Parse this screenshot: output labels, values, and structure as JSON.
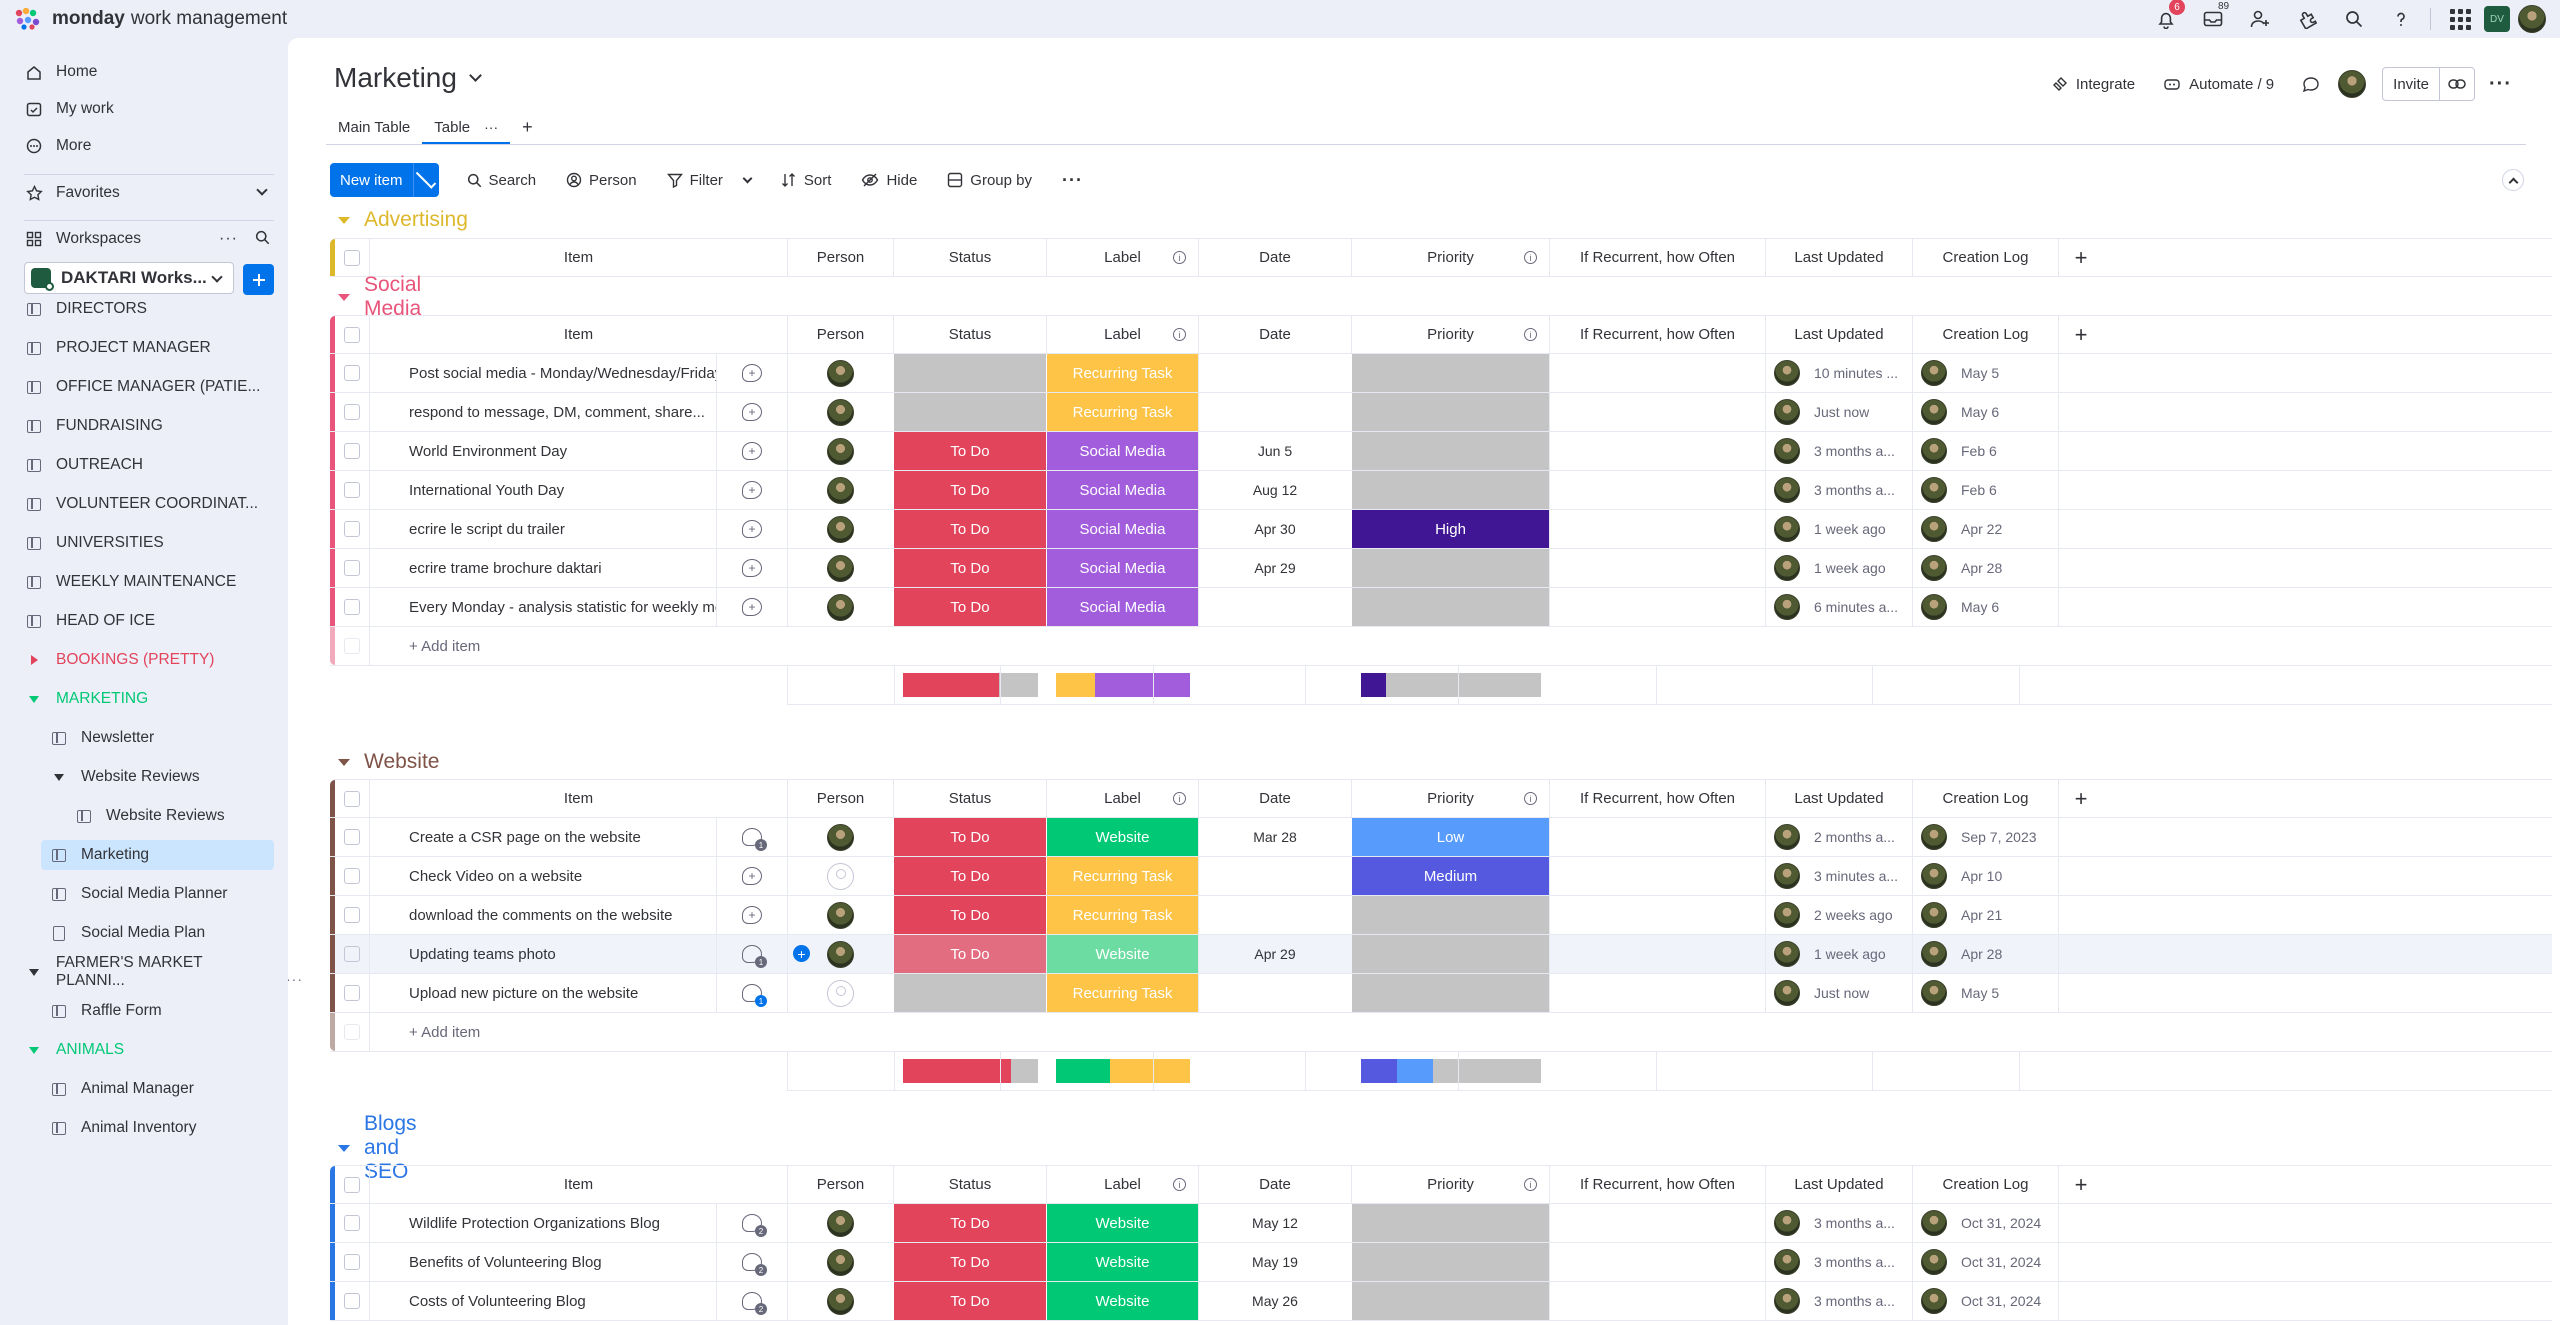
{
  "app": {
    "brand_bold": "monday",
    "brand_rest": "work management",
    "notifications_count": "6",
    "inbox_count": "89"
  },
  "sidebar": {
    "nav": [
      {
        "label": "Home",
        "icon": "home-icon"
      },
      {
        "label": "My work",
        "icon": "calendar-check-icon"
      },
      {
        "label": "More",
        "icon": "more-circle-icon"
      }
    ],
    "favorites_label": "Favorites",
    "workspaces_label": "Workspaces",
    "workspace_name": "DAKTARI Works...",
    "items": [
      {
        "label": "DIRECTORS",
        "type": "board"
      },
      {
        "label": "PROJECT MANAGER",
        "type": "board"
      },
      {
        "label": "OFFICE MANAGER (PATIE...",
        "type": "board"
      },
      {
        "label": "FUNDRAISING",
        "type": "board"
      },
      {
        "label": "OUTREACH",
        "type": "board"
      },
      {
        "label": "VOLUNTEER COORDINAT...",
        "type": "board"
      },
      {
        "label": "UNIVERSITIES",
        "type": "board"
      },
      {
        "label": "WEEKLY MAINTENANCE",
        "type": "board"
      },
      {
        "label": "HEAD OF ICE",
        "type": "board"
      },
      {
        "label": "BOOKINGS (PRETTY)",
        "type": "folder-collapsed",
        "color": "#e2445c"
      },
      {
        "label": "MARKETING",
        "type": "folder-open",
        "color": "#00c875"
      },
      {
        "label": "Newsletter",
        "type": "board",
        "indent": 1
      },
      {
        "label": "Website Reviews",
        "type": "subfolder",
        "indent": 1
      },
      {
        "label": "Website Reviews",
        "type": "board",
        "indent": 2
      },
      {
        "label": "Marketing",
        "type": "board",
        "indent": 1,
        "selected": true
      },
      {
        "label": "Social Media Planner",
        "type": "board",
        "indent": 1
      },
      {
        "label": "Social Media Plan",
        "type": "doc",
        "indent": 1
      },
      {
        "label": "FARMER'S MARKET PLANNI...",
        "type": "folder-open-dark"
      },
      {
        "label": "Raffle Form",
        "type": "board",
        "indent": 1
      },
      {
        "label": "ANIMALS",
        "type": "folder-open",
        "color": "#00c875"
      },
      {
        "label": "Animal Manager",
        "type": "board",
        "indent": 1
      },
      {
        "label": "Animal Inventory",
        "type": "board",
        "indent": 1
      }
    ]
  },
  "board": {
    "title": "Marketing",
    "tabs": [
      "Main Table",
      "Table"
    ],
    "actions": {
      "integrate": "Integrate",
      "automate": "Automate / 9",
      "invite": "Invite"
    },
    "toolbar": {
      "new_item": "New item",
      "search": "Search",
      "person": "Person",
      "filter": "Filter",
      "sort": "Sort",
      "hide": "Hide",
      "group_by": "Group by"
    }
  },
  "columns": [
    "Item",
    "Person",
    "Status",
    "Label",
    "Date",
    "Priority",
    "If Recurrent, how Often",
    "Last Updated",
    "Creation Log"
  ],
  "add_item_label": "+ Add item",
  "colors": {
    "todo": "#e2445c",
    "todo_hover": "#e36d80",
    "recurring": "#fdc447",
    "social": "#a25ddc",
    "website": "#00c875",
    "website_hover": "#6ddca3",
    "high": "#401694",
    "low": "#579bfc",
    "medium": "#5559df",
    "empty": "#c4c4c4"
  },
  "groups": [
    {
      "title": "Advertising",
      "color": "#ddb82b",
      "rows": []
    },
    {
      "title": "Social Media",
      "color": "#e8547a",
      "rows": [
        {
          "item": "Post social media - Monday/Wednesday/Friday",
          "chat": "plus",
          "person": "avatar",
          "status": "",
          "label": "Recurring Task",
          "date": "",
          "priority": "",
          "updated": "10 minutes ...",
          "created": "May 5"
        },
        {
          "item": "respond to message, DM, comment, share...",
          "chat": "plus",
          "person": "avatar",
          "status": "",
          "label": "Recurring Task",
          "date": "",
          "priority": "",
          "updated": "Just now",
          "created": "May 6"
        },
        {
          "item": "World Environment Day",
          "chat": "plus",
          "person": "avatar",
          "status": "To Do",
          "label": "Social Media",
          "date": "Jun 5",
          "priority": "",
          "updated": "3 months a...",
          "created": "Feb 6"
        },
        {
          "item": "International Youth Day",
          "chat": "plus",
          "person": "avatar",
          "status": "To Do",
          "label": "Social Media",
          "date": "Aug 12",
          "priority": "",
          "updated": "3 months a...",
          "created": "Feb 6"
        },
        {
          "item": "ecrire le script du trailer",
          "chat": "plus",
          "person": "avatar",
          "status": "To Do",
          "label": "Social Media",
          "date": "Apr 30",
          "priority": "High",
          "updated": "1 week ago",
          "created": "Apr 22"
        },
        {
          "item": "ecrire trame brochure daktari",
          "chat": "plus",
          "person": "avatar",
          "status": "To Do",
          "label": "Social Media",
          "date": "Apr 29",
          "priority": "",
          "updated": "1 week ago",
          "created": "Apr 28"
        },
        {
          "item": "Every Monday - analysis statistic for weekly meeting",
          "chat": "plus",
          "person": "avatar",
          "status": "To Do",
          "label": "Social Media",
          "date": "",
          "priority": "",
          "updated": "6 minutes a...",
          "created": "May 6"
        }
      ],
      "summary": {
        "status": [
          {
            "c": "todo",
            "f": 0.71
          },
          {
            "c": "empty",
            "f": 0.29
          }
        ],
        "label": [
          {
            "c": "recurring",
            "f": 0.29
          },
          {
            "c": "social",
            "f": 0.71
          }
        ],
        "priority": [
          {
            "c": "high",
            "f": 0.14
          },
          {
            "c": "empty",
            "f": 0.86
          }
        ]
      }
    },
    {
      "title": "Website",
      "color": "#7f5347",
      "rows": [
        {
          "item": "Create a CSR page on the website",
          "chat": "1",
          "person": "avatar",
          "status": "To Do",
          "label": "Website",
          "date": "Mar 28",
          "priority": "Low",
          "updated": "2 months a...",
          "created": "Sep 7, 2023"
        },
        {
          "item": "Check Video on a website",
          "chat": "plus",
          "person": "empty",
          "status": "To Do",
          "label": "Recurring Task",
          "date": "",
          "priority": "Medium",
          "updated": "3 minutes a...",
          "created": "Apr 10"
        },
        {
          "item": "download the comments on the website",
          "chat": "plus",
          "person": "avatar",
          "status": "To Do",
          "label": "Recurring Task",
          "date": "",
          "priority": "",
          "updated": "2 weeks ago",
          "created": "Apr 21"
        },
        {
          "item": "Updating teams photo",
          "chat": "1",
          "person": "avatar",
          "status": "To Do",
          "label": "Website",
          "date": "Apr 29",
          "priority": "",
          "updated": "1 week ago",
          "created": "Apr 28",
          "hover": true
        },
        {
          "item": "Upload new picture on the website",
          "chat": "1b",
          "person": "empty",
          "status": "",
          "label": "Recurring Task",
          "date": "",
          "priority": "",
          "updated": "Just now",
          "created": "May 5"
        }
      ],
      "summary": {
        "status": [
          {
            "c": "todo",
            "f": 0.8
          },
          {
            "c": "empty",
            "f": 0.2
          }
        ],
        "label": [
          {
            "c": "website",
            "f": 0.4
          },
          {
            "c": "recurring",
            "f": 0.6
          }
        ],
        "priority": [
          {
            "c": "medium",
            "f": 0.2
          },
          {
            "c": "low",
            "f": 0.2
          },
          {
            "c": "empty",
            "f": 0.6
          }
        ]
      }
    },
    {
      "title": "Blogs and SEO",
      "color": "#2b76e5",
      "rows": [
        {
          "item": "Wildlife Protection Organizations Blog",
          "chat": "2",
          "person": "avatar",
          "status": "To Do",
          "label": "Website",
          "date": "May 12",
          "priority": "",
          "updated": "3 months a...",
          "created": "Oct 31, 2024"
        },
        {
          "item": "Benefits of Volunteering Blog",
          "chat": "2",
          "person": "avatar",
          "status": "To Do",
          "label": "Website",
          "date": "May 19",
          "priority": "",
          "updated": "3 months a...",
          "created": "Oct 31, 2024"
        },
        {
          "item": "Costs of Volunteering Blog",
          "chat": "2",
          "person": "avatar",
          "status": "To Do",
          "label": "Website",
          "date": "May 26",
          "priority": "",
          "updated": "3 months a...",
          "created": "Oct 31, 2024"
        }
      ]
    }
  ]
}
